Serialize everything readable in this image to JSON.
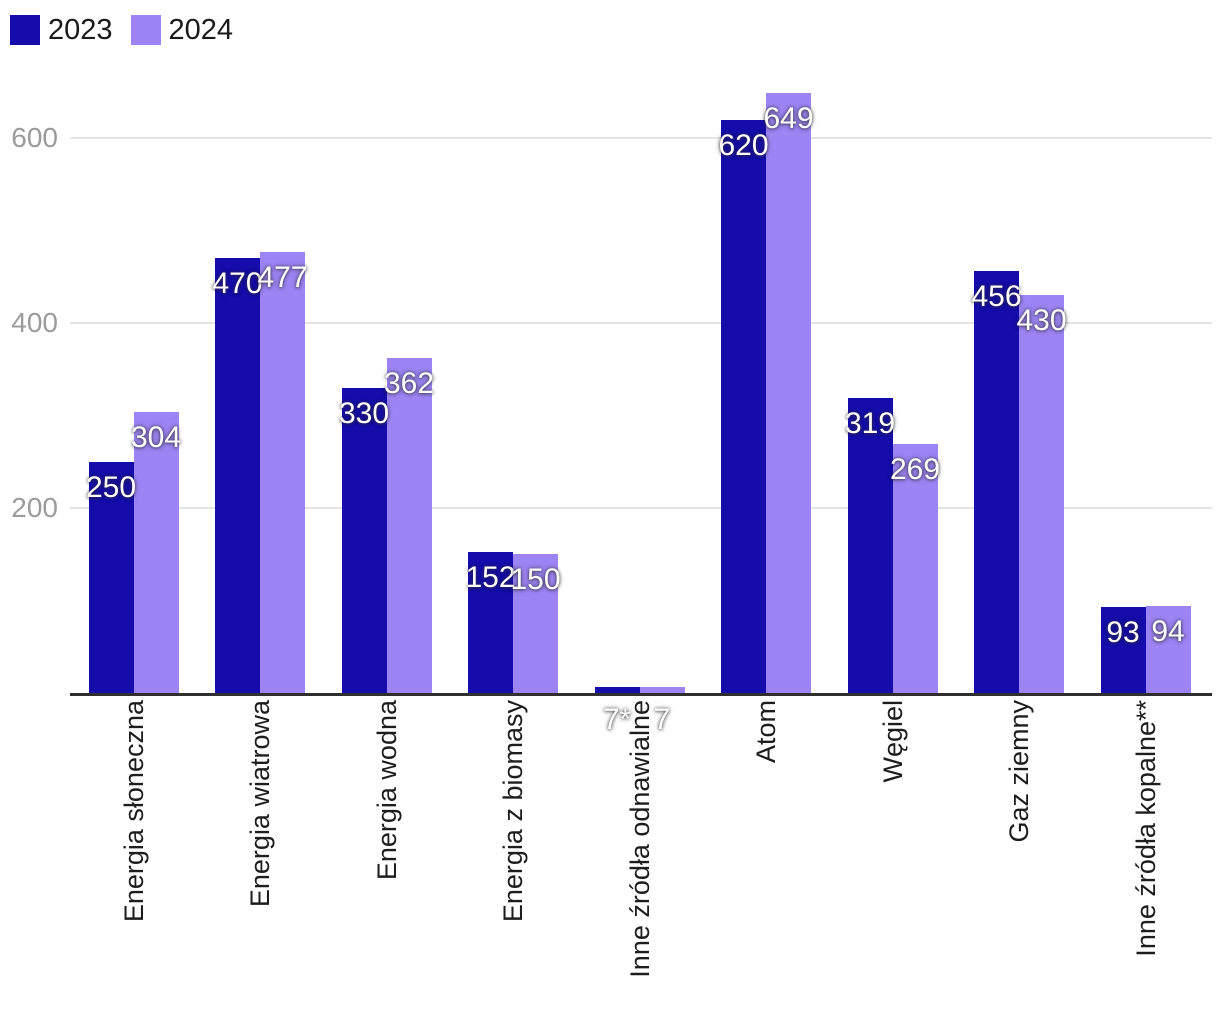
{
  "chart_data": {
    "type": "bar",
    "title": "",
    "xlabel": "",
    "ylabel": "",
    "categories": [
      "Energia słoneczna",
      "Energia wiatrowa",
      "Energia wodna",
      "Energia z biomasy",
      "Inne źródła odnawialne",
      "Atom",
      "Węgiel",
      "Gaz ziemny",
      "Inne źródła kopalne**"
    ],
    "series": [
      {
        "name": "2023",
        "color": "#150cab",
        "values": [
          250,
          470,
          330,
          152,
          7,
          620,
          319,
          456,
          93
        ],
        "labels": [
          "250",
          "470",
          "330",
          "152",
          "7*",
          "620",
          "319",
          "456",
          "93"
        ]
      },
      {
        "name": "2024",
        "color": "#9d84f4",
        "values": [
          304,
          477,
          362,
          150,
          7,
          649,
          269,
          430,
          94
        ],
        "labels": [
          "304",
          "477",
          "362",
          "150",
          "7",
          "649",
          "269",
          "430",
          "94"
        ]
      }
    ],
    "yticks": [
      200,
      400,
      600
    ],
    "ylim": [
      0,
      700
    ],
    "grid": "horizontal",
    "legend_position": "top-left",
    "category_labels_rotated": "90deg bottom-to-top",
    "colors": {
      "axis": "#2f2f2f",
      "gridline": "#e4e4e4",
      "tick_text": "#9b9b9b",
      "category_text": "#1d1d1d",
      "data_label_text": "#ffffff"
    }
  }
}
